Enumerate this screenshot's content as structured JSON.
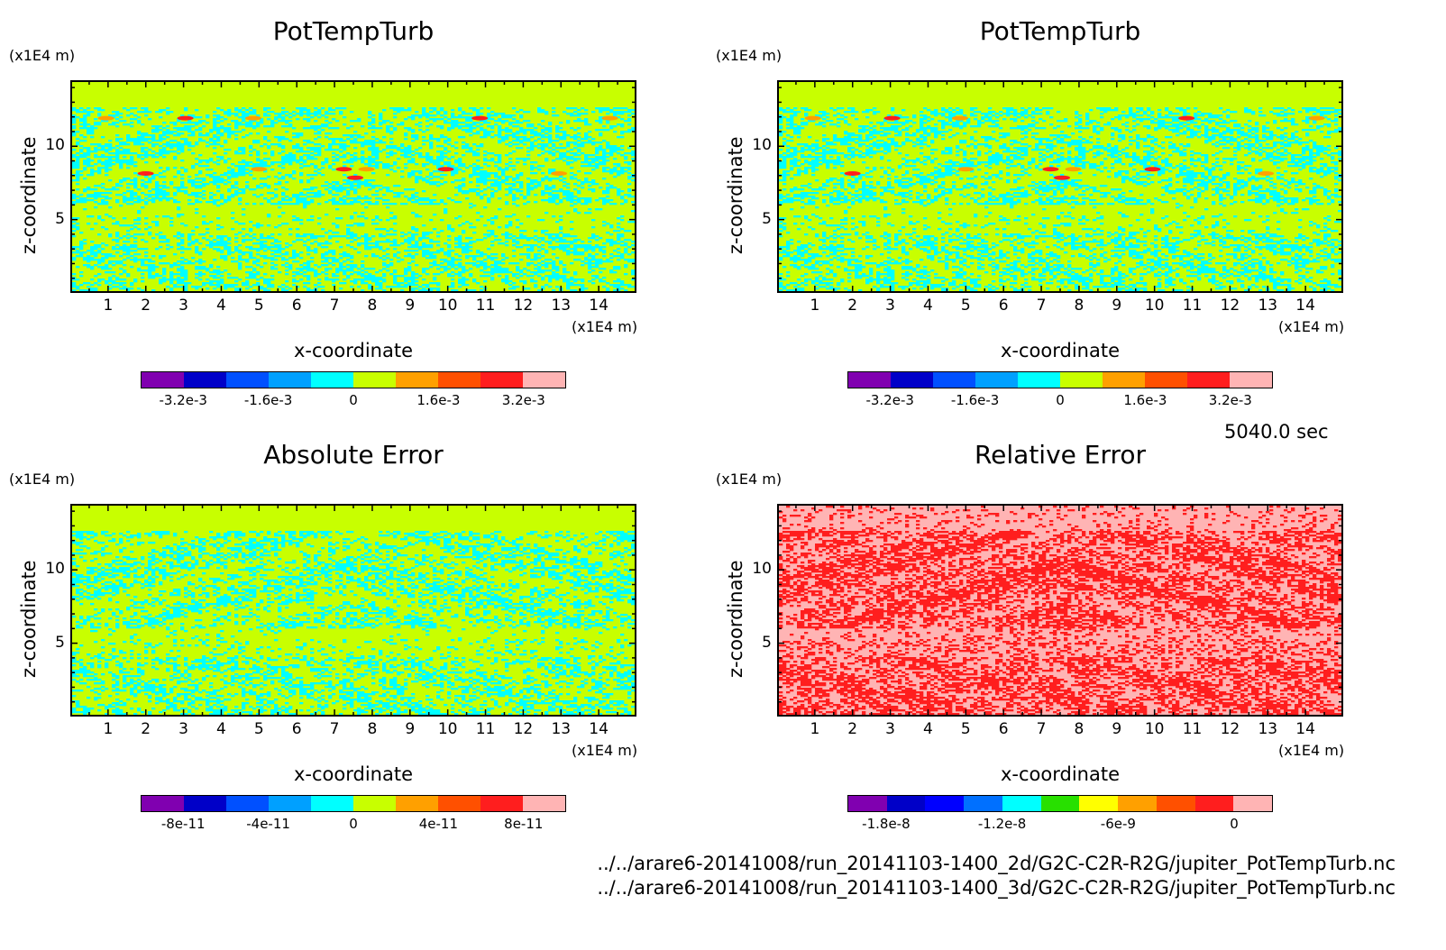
{
  "timestamp": "5040.0 sec",
  "file_paths": [
    "../../arare6-20141008/run_20141103-1400_2d/G2C-C2R-R2G/jupiter_PotTempTurb.nc",
    "../../arare6-20141008/run_20141103-1400_3d/G2C-C2R-R2G/jupiter_PotTempTurb.nc"
  ],
  "chart_data": [
    {
      "type": "heatmap",
      "title": "PotTempTurb",
      "xlabel": "x-coordinate",
      "ylabel": "z-coordinate",
      "x_unit": "(x1E4 m)",
      "y_unit": "(x1E4 m)",
      "xlim": [
        0,
        15
      ],
      "ylim": [
        0,
        14.5
      ],
      "x_ticks": [
        "1",
        "2",
        "3",
        "4",
        "5",
        "6",
        "7",
        "8",
        "9",
        "10",
        "11",
        "12",
        "13",
        "14"
      ],
      "y_ticks": [
        "5",
        "10"
      ],
      "colorbar": {
        "colors": [
          "#8000b0",
          "#0000c8",
          "#0050ff",
          "#00a0ff",
          "#00ffff",
          "#c8ff00",
          "#ffa000",
          "#ff5000",
          "#ff1e1e",
          "#ffb4b4"
        ],
        "tick_labels": [
          "-3.2e-3",
          "-1.6e-3",
          "0",
          "1.6e-3",
          "3.2e-3"
        ]
      },
      "palette": {
        "background": "#c8ff00",
        "structure": "#00ffff",
        "minor": [
          "#00a0ff",
          "#ffa000",
          "#ff1e1e"
        ]
      }
    },
    {
      "type": "heatmap",
      "title": "PotTempTurb",
      "xlabel": "x-coordinate",
      "ylabel": "z-coordinate",
      "x_unit": "(x1E4 m)",
      "y_unit": "(x1E4 m)",
      "xlim": [
        0,
        15
      ],
      "ylim": [
        0,
        14.5
      ],
      "x_ticks": [
        "1",
        "2",
        "3",
        "4",
        "5",
        "6",
        "7",
        "8",
        "9",
        "10",
        "11",
        "12",
        "13",
        "14"
      ],
      "y_ticks": [
        "5",
        "10"
      ],
      "colorbar": {
        "colors": [
          "#8000b0",
          "#0000c8",
          "#0050ff",
          "#00a0ff",
          "#00ffff",
          "#c8ff00",
          "#ffa000",
          "#ff5000",
          "#ff1e1e",
          "#ffb4b4"
        ],
        "tick_labels": [
          "-3.2e-3",
          "-1.6e-3",
          "0",
          "1.6e-3",
          "3.2e-3"
        ]
      },
      "palette": {
        "background": "#c8ff00",
        "structure": "#00ffff",
        "minor": [
          "#00a0ff",
          "#ffa000",
          "#ff1e1e"
        ]
      }
    },
    {
      "type": "heatmap",
      "title": "Absolute Error",
      "xlabel": "x-coordinate",
      "ylabel": "z-coordinate",
      "x_unit": "(x1E4 m)",
      "y_unit": "(x1E4 m)",
      "xlim": [
        0,
        15
      ],
      "ylim": [
        0,
        14.5
      ],
      "x_ticks": [
        "1",
        "2",
        "3",
        "4",
        "5",
        "6",
        "7",
        "8",
        "9",
        "10",
        "11",
        "12",
        "13",
        "14"
      ],
      "y_ticks": [
        "5",
        "10"
      ],
      "colorbar": {
        "colors": [
          "#8000b0",
          "#0000c8",
          "#0050ff",
          "#00a0ff",
          "#00ffff",
          "#c8ff00",
          "#ffa000",
          "#ff5000",
          "#ff1e1e",
          "#ffb4b4"
        ],
        "tick_labels": [
          "-8e-11",
          "-4e-11",
          "0",
          "4e-11",
          "8e-11"
        ]
      },
      "palette": {
        "background": "#c8ff00",
        "structure": "#00ffff",
        "minor": []
      }
    },
    {
      "type": "heatmap",
      "title": "Relative Error",
      "xlabel": "x-coordinate",
      "ylabel": "z-coordinate",
      "x_unit": "(x1E4 m)",
      "y_unit": "(x1E4 m)",
      "xlim": [
        0,
        15
      ],
      "ylim": [
        0,
        14.5
      ],
      "x_ticks": [
        "1",
        "2",
        "3",
        "4",
        "5",
        "6",
        "7",
        "8",
        "9",
        "10",
        "11",
        "12",
        "13",
        "14"
      ],
      "y_ticks": [
        "5",
        "10"
      ],
      "colorbar": {
        "colors": [
          "#8000b0",
          "#0000c8",
          "#0000ff",
          "#0070ff",
          "#00ffff",
          "#28e000",
          "#ffff00",
          "#ffa000",
          "#ff5000",
          "#ff1e1e",
          "#ffb4b4"
        ],
        "tick_labels": [
          "-1.8e-8",
          "-1.2e-8",
          "-6e-9",
          "0"
        ]
      },
      "palette": {
        "background": "#ffb4b4",
        "structure": "#ff1e1e",
        "minor": []
      }
    }
  ]
}
